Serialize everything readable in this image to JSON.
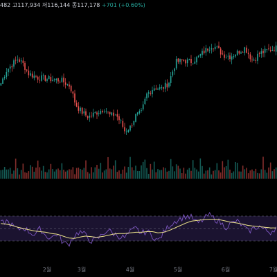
{
  "legend": {
    "open_partial": "482",
    "high_label": "고",
    "high_value": "117,934",
    "low_label": "저",
    "low_value": "116,144",
    "close_label": "종",
    "close_value": "117,178",
    "change": "+701 (+0.60%)"
  },
  "colors": {
    "up": "#26a69a",
    "down": "#ef5350",
    "rsi_line": "#7e57c2",
    "rsi_ma": "#f0e68c",
    "rsi_band_fill": "#1b1330",
    "text": "#d1d4dc",
    "axis_text": "#787b86"
  },
  "chart_data": {
    "type": "candlestick",
    "time_axis": [
      "2월",
      "3월",
      "4월",
      "5월",
      "6월",
      "7월"
    ],
    "price_series": [
      {
        "t": 0,
        "c": 96000
      },
      {
        "t": 3,
        "c": 100500
      },
      {
        "t": 6,
        "c": 102500
      },
      {
        "t": 9,
        "c": 104500
      },
      {
        "t": 12,
        "c": 103000
      },
      {
        "t": 15,
        "c": 99500
      },
      {
        "t": 20,
        "c": 98000
      },
      {
        "t": 26,
        "c": 97500
      },
      {
        "t": 33,
        "c": 97000
      },
      {
        "t": 38,
        "c": 95000
      },
      {
        "t": 41,
        "c": 88500
      },
      {
        "t": 44,
        "c": 86000
      },
      {
        "t": 48,
        "c": 84000
      },
      {
        "t": 52,
        "c": 85500
      },
      {
        "t": 57,
        "c": 87000
      },
      {
        "t": 60,
        "c": 84500
      },
      {
        "t": 63,
        "c": 85000
      },
      {
        "t": 66,
        "c": 82000
      },
      {
        "t": 68,
        "c": 79000
      },
      {
        "t": 71,
        "c": 80500
      },
      {
        "t": 74,
        "c": 84500
      },
      {
        "t": 77,
        "c": 85500
      },
      {
        "t": 80,
        "c": 92000
      },
      {
        "t": 84,
        "c": 94500
      },
      {
        "t": 88,
        "c": 94000
      },
      {
        "t": 92,
        "c": 96000
      },
      {
        "t": 96,
        "c": 103500
      },
      {
        "t": 100,
        "c": 104000
      },
      {
        "t": 104,
        "c": 103500
      },
      {
        "t": 108,
        "c": 105000
      },
      {
        "t": 112,
        "c": 107500
      },
      {
        "t": 116,
        "c": 109500
      },
      {
        "t": 119,
        "c": 108000
      },
      {
        "t": 122,
        "c": 106000
      },
      {
        "t": 126,
        "c": 105500
      },
      {
        "t": 130,
        "c": 107000
      },
      {
        "t": 134,
        "c": 108500
      },
      {
        "t": 138,
        "c": 104000
      },
      {
        "t": 142,
        "c": 106500
      },
      {
        "t": 146,
        "c": 107500
      },
      {
        "t": 151,
        "c": 108500
      }
    ],
    "volume_relative": [
      0.3,
      0.4,
      0.5,
      0.35,
      0.6,
      0.4,
      0.3,
      0.5,
      0.7,
      0.4,
      0.3,
      0.5,
      0.6,
      0.4,
      0.3,
      0.35,
      0.45,
      0.5,
      0.3,
      0.4,
      0.9,
      0.6,
      0.5,
      0.8,
      0.4,
      0.3,
      0.5,
      0.6,
      0.7,
      0.4,
      0.3,
      0.5,
      0.4,
      0.6,
      0.3,
      0.4,
      0.5,
      0.3,
      0.6,
      0.4,
      0.3,
      0.5,
      0.7,
      0.4,
      0.35,
      0.5,
      0.6,
      0.4,
      0.3,
      0.5
    ],
    "rsi": [
      58,
      62,
      55,
      48,
      52,
      45,
      40,
      50,
      38,
      35,
      42,
      28,
      24,
      38,
      45,
      40,
      30,
      32,
      40,
      48,
      42,
      38,
      35,
      44,
      50,
      42,
      46,
      38,
      30,
      44,
      55,
      62,
      66,
      70,
      68,
      58,
      64,
      72,
      66,
      60,
      52,
      58,
      62,
      55,
      45,
      50,
      54,
      48,
      44,
      52
    ],
    "rsi_ma": [
      58,
      57,
      55,
      52,
      50,
      48,
      46,
      45,
      44,
      42,
      41,
      38,
      35,
      34,
      36,
      38,
      37,
      36,
      37,
      39,
      41,
      42,
      42,
      43,
      44,
      44,
      45,
      45,
      43,
      44,
      47,
      51,
      55,
      59,
      62,
      63,
      64,
      65,
      65,
      64,
      62,
      60,
      59,
      57,
      55,
      54,
      53,
      52,
      51,
      51
    ],
    "rsi_levels": [
      70,
      50,
      30
    ],
    "rsi_ylim": [
      10,
      90
    ]
  }
}
